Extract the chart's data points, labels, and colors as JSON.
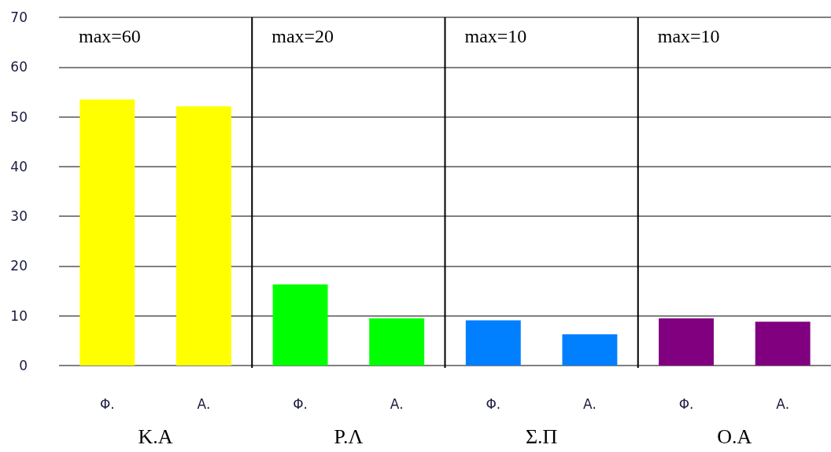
{
  "chart_data": {
    "type": "bar",
    "categories": [
      "Φ.",
      "Α.",
      "Φ.",
      "Α.",
      "Φ.",
      "Α.",
      "Φ.",
      "Α."
    ],
    "values": [
      53.5,
      52.1,
      16.3,
      9.5,
      9.1,
      6.3,
      9.5,
      8.8
    ],
    "colors": [
      "#ffff00",
      "#ffff00",
      "#00ff00",
      "#00ff00",
      "#0080ff",
      "#0080ff",
      "#800080",
      "#800080"
    ],
    "ylim": [
      0,
      70
    ],
    "yticks": [
      0,
      10,
      20,
      30,
      40,
      50,
      60,
      70
    ],
    "grid": "y",
    "annotations": [
      "max=60",
      "max=20",
      "max=10",
      "max=10",
      "Κ.Α",
      "Ρ.Λ",
      "Σ.Π",
      "Ο.Α"
    ]
  }
}
